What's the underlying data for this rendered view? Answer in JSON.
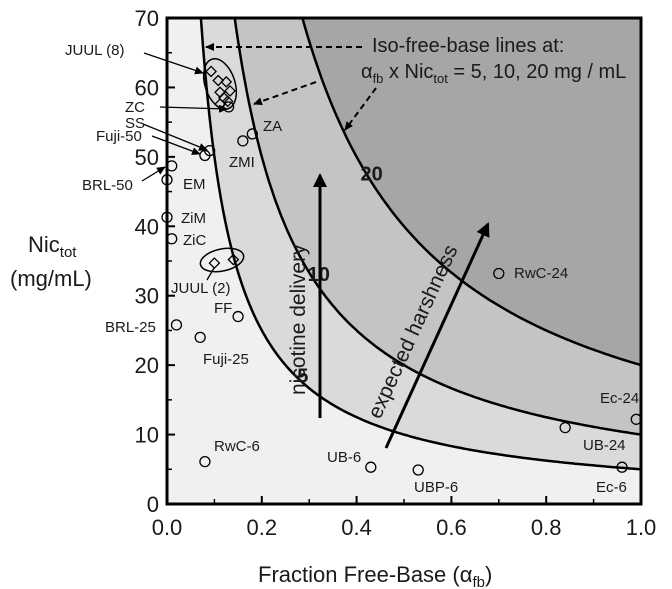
{
  "chart_data": {
    "type": "scatter",
    "xlabel": "Fraction Free-Base (α",
    "xlabel_sub": "fb",
    "xlabel_close": ")",
    "ylabel_main": "Nic",
    "ylabel_sub": "tot",
    "ylabel_units": "(mg/mL)",
    "xlim": [
      0,
      1
    ],
    "ylim": [
      0,
      70
    ],
    "xticks": [
      "0.0",
      "0.2",
      "0.4",
      "0.6",
      "0.8",
      "1.0"
    ],
    "yticks": [
      "0",
      "10",
      "20",
      "30",
      "40",
      "50",
      "60",
      "70"
    ],
    "region_colors": {
      "background": "#ffffff",
      "lt5": "#f0f0f0",
      "r5to10": "#dadada",
      "r10to20": "#c4c4c4",
      "gt20": "#a6a6a6"
    },
    "iso_lines": [
      {
        "product": 5,
        "label": "5"
      },
      {
        "product": 10,
        "label": "10"
      },
      {
        "product": 20,
        "label": "20"
      }
    ],
    "circle_points": [
      {
        "label": "RwC-24",
        "x": 0.7,
        "y": 33.2
      },
      {
        "label": "Ec-24",
        "x": 0.99,
        "y": 12.2
      },
      {
        "label": "UB-24",
        "x": 0.84,
        "y": 11.0
      },
      {
        "label": "Ec-6",
        "x": 0.96,
        "y": 5.3
      },
      {
        "label": "UBP-6",
        "x": 0.53,
        "y": 4.9
      },
      {
        "label": "UB-6",
        "x": 0.43,
        "y": 5.3
      },
      {
        "label": "RwC-6",
        "x": 0.08,
        "y": 6.1
      },
      {
        "label": "Fuji-25",
        "x": 0.07,
        "y": 24.0
      },
      {
        "label": "BRL-25",
        "x": 0.02,
        "y": 25.8
      },
      {
        "label": "FF",
        "x": 0.15,
        "y": 27.0
      },
      {
        "label": "ZiC",
        "x": 0.01,
        "y": 38.2
      },
      {
        "label": "ZiM",
        "x": 0.0,
        "y": 41.3
      },
      {
        "label": "EM",
        "x": 0.01,
        "y": 48.7
      },
      {
        "label": "BRL-50",
        "x": 0.0,
        "y": 46.7
      },
      {
        "label": "Fuji-50",
        "x": 0.08,
        "y": 50.2
      },
      {
        "label": "SS",
        "x": 0.09,
        "y": 50.9
      },
      {
        "label": "ZMI",
        "x": 0.16,
        "y": 52.3
      },
      {
        "label": "ZA",
        "x": 0.18,
        "y": 53.3
      },
      {
        "label": "ZC",
        "x": 0.13,
        "y": 57.2
      }
    ],
    "diamond_points_juul8": [
      {
        "x": 0.093,
        "y": 62.3
      },
      {
        "x": 0.108,
        "y": 61.0
      },
      {
        "x": 0.125,
        "y": 60.8
      },
      {
        "x": 0.133,
        "y": 59.5
      },
      {
        "x": 0.112,
        "y": 59.3
      },
      {
        "x": 0.12,
        "y": 58.5
      },
      {
        "x": 0.112,
        "y": 57.6
      },
      {
        "x": 0.128,
        "y": 58.0
      }
    ],
    "diamond_points_juul2": [
      {
        "x": 0.1,
        "y": 34.7
      },
      {
        "x": 0.14,
        "y": 35.2
      }
    ],
    "group_labels": {
      "juul8": "JUUL (8)",
      "juul2": "JUUL (2)"
    },
    "annotation": {
      "line1": "Iso-free-base lines at:",
      "alpha": "α",
      "fb": "fb",
      "times": " x Nic",
      "tot": "tot",
      "eq": " = 5, 10, 20 mg / mL"
    },
    "arrows": {
      "nicotine": "nicotine delivery",
      "harshness": "expected harshness"
    }
  }
}
